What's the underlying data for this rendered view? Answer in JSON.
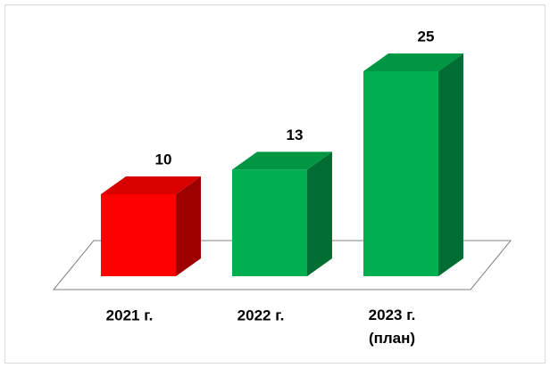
{
  "chart_data": {
    "type": "bar3d",
    "categories": [
      "2021 г.",
      "2022 г.",
      "2023 г.\n(план)"
    ],
    "values": [
      10,
      13,
      25
    ],
    "colors": [
      "#ff0000",
      "#00b050",
      "#00b050"
    ]
  }
}
